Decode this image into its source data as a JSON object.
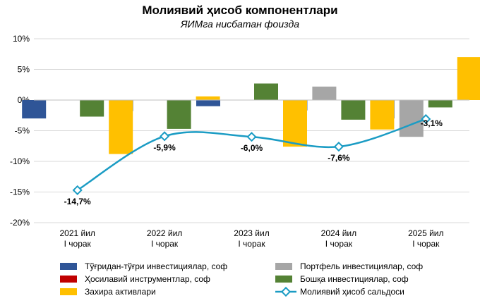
{
  "chart_data": {
    "type": "bar",
    "title": "Молиявий ҳисоб компонентлари",
    "subtitle": "ЯИМга нисбатан фоизда",
    "categories": [
      [
        "2021 йил",
        "I чорак"
      ],
      [
        "2022 йил",
        "I чорак"
      ],
      [
        "2023 йил",
        "I чорак"
      ],
      [
        "2024 йил",
        "I чорак"
      ],
      [
        "2025 йил",
        "I чорак"
      ]
    ],
    "ylim": [
      -20,
      10
    ],
    "yticks": [
      10,
      5,
      0,
      -5,
      -10,
      -15,
      -20
    ],
    "ytick_labels": [
      "10%",
      "5%",
      "0%",
      "-5%",
      "-10%",
      "-15%",
      "-20%"
    ],
    "grid": true,
    "legend_position": "bottom",
    "series": [
      {
        "name": "Тўғридан-тўғри инвестициялар, соф",
        "type": "bar",
        "color": "#2F5597",
        "values": [
          -3.0,
          -1.8,
          -1.0,
          -1.7,
          -3.0
        ]
      },
      {
        "name": "Портфель инвестициялар, соф",
        "type": "bar",
        "color": "#A6A6A6",
        "values": [
          0.0,
          0.0,
          0.0,
          2.2,
          -6.0
        ]
      },
      {
        "name": "Ҳосилавий инструментлар, соф",
        "type": "bar",
        "color": "#C00000",
        "values": [
          0.0,
          0.0,
          0.0,
          0.0,
          0.0
        ]
      },
      {
        "name": "Бошқа инвестициялар, соф",
        "type": "bar",
        "color": "#548235",
        "values": [
          -2.7,
          -4.7,
          2.7,
          -3.2,
          -1.2
        ]
      },
      {
        "name": "Захира активлари",
        "type": "bar",
        "color": "#FFC000",
        "values": [
          -8.8,
          0.6,
          -7.6,
          -4.8,
          7.0
        ]
      },
      {
        "name": "Молиявий ҳисоб сальдоси",
        "type": "line",
        "color": "#1B9CC4",
        "values": [
          -14.7,
          -5.9,
          -6.0,
          -7.6,
          -3.1
        ],
        "labels": [
          "-14,7%",
          "-5,9%",
          "-6,0%",
          "-7,6%",
          "-3,1%"
        ]
      }
    ]
  }
}
